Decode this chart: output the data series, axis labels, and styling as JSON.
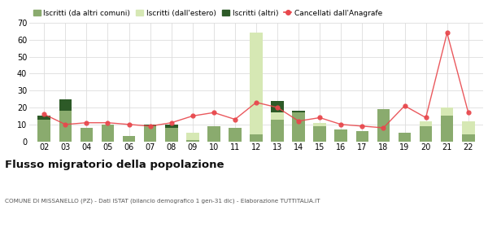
{
  "years": [
    "02",
    "03",
    "04",
    "05",
    "06",
    "07",
    "08",
    "09",
    "10",
    "11",
    "12",
    "13",
    "14",
    "15",
    "16",
    "17",
    "18",
    "19",
    "20",
    "21",
    "22"
  ],
  "iscritti_altri_comuni": [
    13,
    18,
    8,
    10,
    3,
    9,
    8,
    1,
    9,
    8,
    4,
    13,
    17,
    9,
    7,
    6,
    19,
    5,
    9,
    15,
    4
  ],
  "iscritti_estero": [
    0,
    0,
    0,
    0,
    0,
    0,
    0,
    4,
    0,
    0,
    60,
    4,
    0,
    2,
    0,
    0,
    0,
    0,
    3,
    5,
    8
  ],
  "iscritti_altri": [
    2,
    7,
    0,
    0,
    0,
    1,
    2,
    0,
    0,
    0,
    0,
    7,
    1,
    0,
    0,
    0,
    0,
    0,
    0,
    0,
    0
  ],
  "cancellati": [
    16,
    10,
    11,
    11,
    10,
    9,
    11,
    15,
    17,
    13,
    23,
    20,
    12,
    14,
    10,
    9,
    8,
    21,
    14,
    64,
    17
  ],
  "color_altri_comuni": "#8aab6e",
  "color_estero": "#d6e8b4",
  "color_altri": "#2d5a27",
  "color_cancellati": "#e8474c",
  "ylim": [
    0,
    70
  ],
  "yticks": [
    0,
    10,
    20,
    30,
    40,
    50,
    60,
    70
  ],
  "title": "Flusso migratorio della popolazione",
  "subtitle": "COMUNE DI MISSANELLO (PZ) - Dati ISTAT (bilancio demografico 1 gen-31 dic) - Elaborazione TUTTITALIA.IT",
  "legend_labels": [
    "Iscritti (da altri comuni)",
    "Iscritti (dall'estero)",
    "Iscritti (altri)",
    "Cancellati dall'Anagrafe"
  ],
  "bg_color": "#ffffff",
  "grid_color": "#dddddd"
}
